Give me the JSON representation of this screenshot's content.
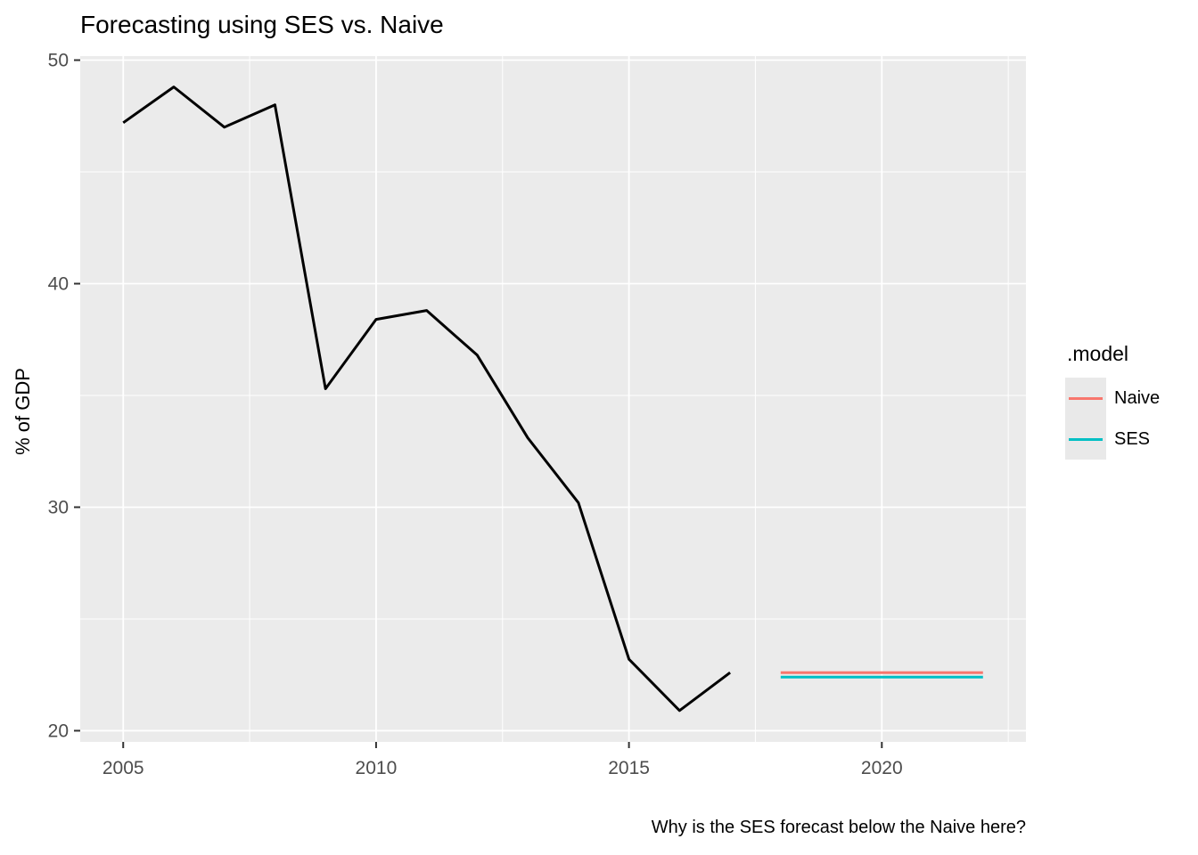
{
  "plot": {
    "title": "Forecasting using SES vs. Naive",
    "ylabel": "% of GDP",
    "caption": "Why is the SES forecast below the Naive here?"
  },
  "legend": {
    "title": ".model",
    "entries": [
      {
        "label": "Naive",
        "color": "#F8766D"
      },
      {
        "label": "SES",
        "color": "#00BFC4"
      }
    ]
  },
  "colors": {
    "panel_background": "#EBEBEB",
    "gridline": "#FFFFFF",
    "axis_text": "#4D4D4D",
    "tick_mark": "#333333",
    "historical_line": "#000000",
    "naive_line": "#F8766D",
    "ses_line": "#00BFC4"
  },
  "chart_data": {
    "type": "line",
    "title": "Forecasting using SES vs. Naive",
    "xlabel": "",
    "ylabel": "% of GDP",
    "caption": "Why is the SES forecast below the Naive here?",
    "grid": true,
    "legend_position": "right",
    "legend_title": ".model",
    "xlim": [
      2004.15,
      2022.85
    ],
    "ylim": [
      19.5,
      50.18
    ],
    "x_ticks": [
      2005,
      2010,
      2015,
      2020
    ],
    "y_ticks": [
      20,
      30,
      40,
      50
    ],
    "x_minor_gridlines": [
      2007.5,
      2012.5,
      2017.5,
      2022.5
    ],
    "y_minor_gridlines": [
      25,
      35,
      45
    ],
    "series": [
      {
        "name": "historical",
        "color": "#000000",
        "width": 3,
        "x": [
          2005,
          2006,
          2007,
          2008,
          2009,
          2010,
          2011,
          2012,
          2013,
          2014,
          2015,
          2016,
          2017
        ],
        "values": [
          47.2,
          48.8,
          47.0,
          48.0,
          35.3,
          38.4,
          38.8,
          36.8,
          33.1,
          30.2,
          23.2,
          20.9,
          22.6
        ]
      },
      {
        "name": "Naive",
        "color": "#F8766D",
        "width": 3,
        "x": [
          2018,
          2022
        ],
        "values": [
          22.6,
          22.6
        ]
      },
      {
        "name": "SES",
        "color": "#00BFC4",
        "width": 3,
        "x": [
          2018,
          2022
        ],
        "values": [
          22.4,
          22.4
        ]
      }
    ]
  }
}
